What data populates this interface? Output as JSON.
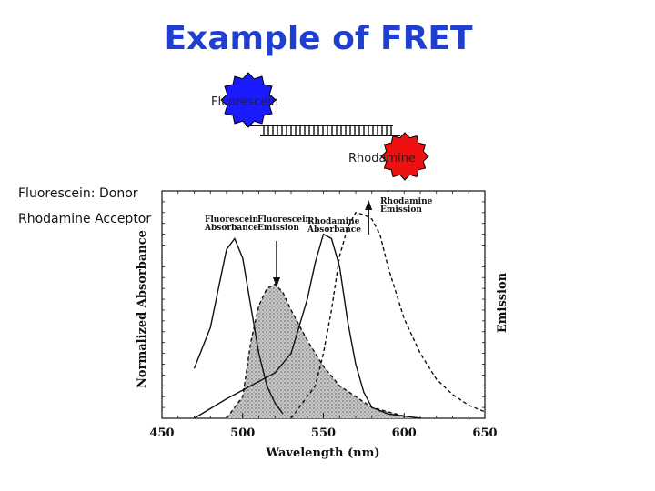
{
  "slide": {
    "title": "Example of FRET",
    "donor_text": "Fluorescein: Donor",
    "acceptor_text": "Rhodamine Acceptor"
  },
  "diagram": {
    "donor_label": "Fluorescein",
    "acceptor_label": "Rhodamine",
    "donor_color": "#1a1aff",
    "acceptor_color": "#ee1111"
  },
  "chart_data": {
    "type": "line",
    "xlabel": "Wavelength (nm)",
    "ylabel_left": "Normalized Absorbance",
    "ylabel_right": "Emission",
    "xlim": [
      450,
      650
    ],
    "ylim": [
      0,
      1.05
    ],
    "x_ticks": [
      450,
      500,
      550,
      600,
      650
    ],
    "series": [
      {
        "name": "Fluorescein Absorbance",
        "style": "solid",
        "x": [
          470,
          480,
          485,
          490,
          495,
          500,
          505,
          510,
          515,
          520,
          525
        ],
        "y": [
          0.23,
          0.42,
          0.6,
          0.78,
          0.83,
          0.74,
          0.52,
          0.3,
          0.15,
          0.07,
          0.02
        ]
      },
      {
        "name": "Fluorescein Emission",
        "style": "dashed",
        "x": [
          490,
          500,
          505,
          510,
          515,
          520,
          525,
          530,
          540,
          550,
          560,
          580,
          600,
          610
        ],
        "y": [
          0.0,
          0.1,
          0.35,
          0.52,
          0.6,
          0.62,
          0.58,
          0.5,
          0.36,
          0.24,
          0.15,
          0.05,
          0.01,
          0.0
        ]
      },
      {
        "name": "Rhodamine Absorbance",
        "style": "solid",
        "x": [
          470,
          490,
          510,
          520,
          530,
          540,
          545,
          550,
          555,
          560,
          565,
          570,
          575,
          580,
          590,
          600,
          610
        ],
        "y": [
          0.0,
          0.09,
          0.17,
          0.21,
          0.3,
          0.55,
          0.72,
          0.85,
          0.83,
          0.7,
          0.45,
          0.25,
          0.12,
          0.05,
          0.02,
          0.01,
          0.0
        ]
      },
      {
        "name": "Rhodamine Emission",
        "style": "dashed",
        "x": [
          530,
          545,
          550,
          555,
          560,
          565,
          570,
          575,
          580,
          585,
          590,
          595,
          600,
          610,
          620,
          630,
          640,
          650
        ],
        "y": [
          0.0,
          0.15,
          0.3,
          0.5,
          0.75,
          0.88,
          0.95,
          0.94,
          0.92,
          0.85,
          0.7,
          0.58,
          0.46,
          0.3,
          0.18,
          0.11,
          0.06,
          0.03
        ]
      }
    ],
    "overlap_shaded": true,
    "annotations": [
      {
        "text": [
          "Fluorescein",
          "Absorbance"
        ]
      },
      {
        "text": [
          "Fluorescein",
          "Emission"
        ]
      },
      {
        "text": [
          "Rhodamine",
          "Absorbance"
        ]
      },
      {
        "text": [
          "Rhodamine",
          "Emission"
        ]
      }
    ],
    "arrows": [
      {
        "name": "fluorescein-emission-down-arrow",
        "direction": "down",
        "x": 521
      },
      {
        "name": "rhodamine-emission-up-arrow",
        "direction": "up",
        "x": 578
      }
    ]
  }
}
